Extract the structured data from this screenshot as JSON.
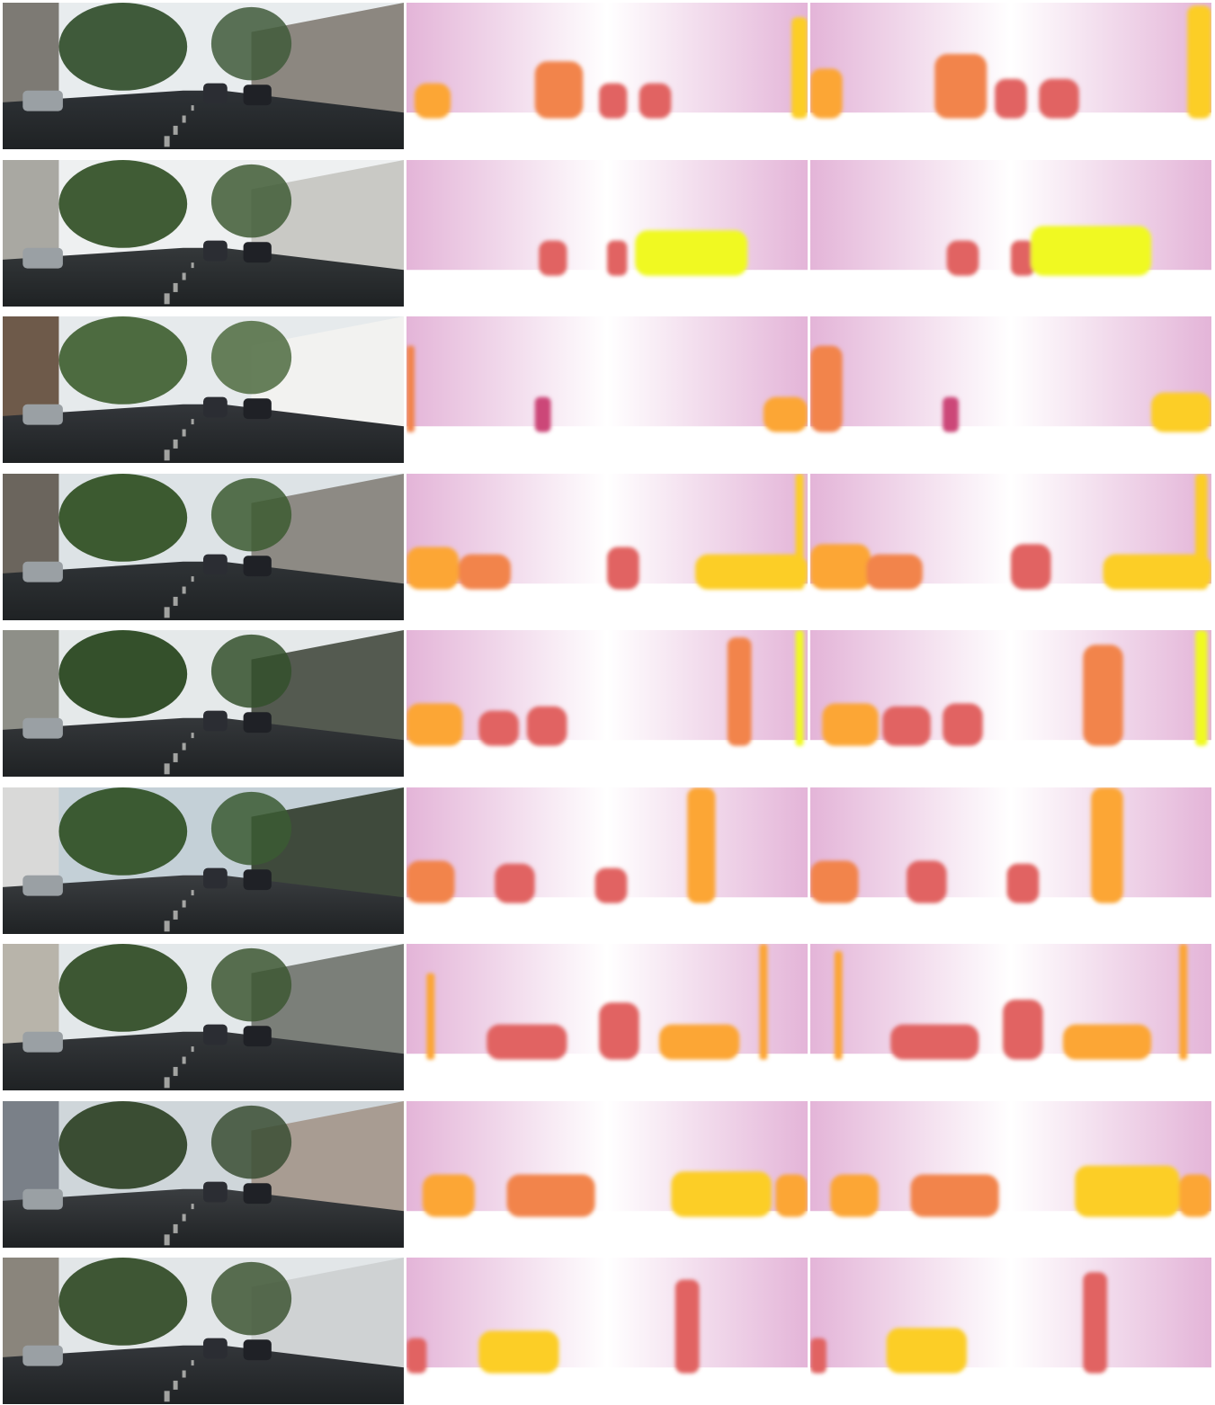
{
  "figure": {
    "column_kinds": [
      "input-rgb",
      "depth-prediction",
      "depth-prediction"
    ],
    "depth_colormap": [
      "#0d0887",
      "#3e049c",
      "#6a00a8",
      "#8f0da4",
      "#b12a90",
      "#cc4778",
      "#e16462",
      "#f2844b",
      "#fca636",
      "#fcce25",
      "#f0f921"
    ],
    "rows": [
      {
        "scene": {
          "sky": "#e8ecee",
          "ground": "#2e3236",
          "foliage": "#3f5a3a",
          "building": "#7d7a74",
          "building_right": "#8c8780"
        },
        "depth_a": {
          "far_colors": [
            "#2a0a96",
            "#5a03a6",
            "#8a14a6"
          ],
          "objects": [
            [
              0.02,
              0.55,
              0.09,
              0.75
            ],
            [
              0.32,
              0.4,
              0.12,
              0.7
            ],
            [
              0.48,
              0.55,
              0.07,
              0.6
            ],
            [
              0.58,
              0.55,
              0.08,
              0.62
            ],
            [
              0.96,
              0.1,
              0.04,
              0.85
            ]
          ]
        },
        "depth_b": {
          "far_colors": [
            "#23078f",
            "#4c05a0",
            "#7e0ca6"
          ],
          "objects": [
            [
              0.0,
              0.45,
              0.08,
              0.78
            ],
            [
              0.31,
              0.35,
              0.13,
              0.7
            ],
            [
              0.46,
              0.52,
              0.08,
              0.6
            ],
            [
              0.57,
              0.52,
              0.1,
              0.62
            ],
            [
              0.94,
              0.02,
              0.06,
              0.92
            ]
          ]
        }
      },
      {
        "scene": {
          "sky": "#eef0f1",
          "ground": "#34383a",
          "foliage": "#405c35",
          "building": "#a9a8a2",
          "building_right": "#c9c9c5"
        },
        "depth_a": {
          "far_colors": [
            "#3c049c",
            "#6300a9",
            "#9a18a0"
          ],
          "objects": [
            [
              0.33,
              0.55,
              0.07,
              0.55
            ],
            [
              0.5,
              0.55,
              0.05,
              0.55
            ],
            [
              0.57,
              0.48,
              0.28,
              0.95
            ]
          ]
        },
        "depth_b": {
          "far_colors": [
            "#3a049b",
            "#6a00a8",
            "#9e1c9c"
          ],
          "objects": [
            [
              0.34,
              0.55,
              0.08,
              0.55
            ],
            [
              0.5,
              0.55,
              0.06,
              0.55
            ],
            [
              0.55,
              0.45,
              0.3,
              0.98
            ]
          ]
        }
      },
      {
        "scene": {
          "sky": "#e6eaec",
          "ground": "#33363a",
          "foliage": "#4d6b40",
          "building": "#6e5a4a",
          "building_right": "#f2f2f0"
        },
        "depth_a": {
          "far_colors": [
            "#4a03a2",
            "#2c0a97",
            "#9a18a0"
          ],
          "objects": [
            [
              0.0,
              0.2,
              0.02,
              0.7
            ],
            [
              0.32,
              0.55,
              0.04,
              0.5
            ],
            [
              0.89,
              0.55,
              0.11,
              0.82
            ]
          ]
        },
        "depth_b": {
          "far_colors": [
            "#3e049c",
            "#220a91",
            "#a82296"
          ],
          "objects": [
            [
              0.0,
              0.2,
              0.08,
              0.72
            ],
            [
              0.33,
              0.55,
              0.04,
              0.5
            ],
            [
              0.85,
              0.52,
              0.15,
              0.86
            ]
          ]
        }
      },
      {
        "scene": {
          "sky": "#dde3e6",
          "ground": "#2f3336",
          "foliage": "#3c5a30",
          "building": "#6b655d",
          "building_right": "#8d8a84"
        },
        "depth_a": {
          "far_colors": [
            "#3a049b",
            "#6a00a8",
            "#a01e9a"
          ],
          "objects": [
            [
              0.0,
              0.5,
              0.13,
              0.82
            ],
            [
              0.13,
              0.55,
              0.13,
              0.65
            ],
            [
              0.5,
              0.5,
              0.08,
              0.62
            ],
            [
              0.72,
              0.55,
              0.28,
              0.9
            ],
            [
              0.97,
              0.0,
              0.02,
              0.92
            ]
          ]
        },
        "depth_b": {
          "far_colors": [
            "#300895",
            "#5a03a6",
            "#a82296"
          ],
          "objects": [
            [
              0.0,
              0.48,
              0.15,
              0.84
            ],
            [
              0.14,
              0.55,
              0.14,
              0.66
            ],
            [
              0.5,
              0.48,
              0.1,
              0.63
            ],
            [
              0.73,
              0.55,
              0.27,
              0.92
            ],
            [
              0.96,
              0.0,
              0.03,
              0.94
            ]
          ]
        }
      },
      {
        "scene": {
          "sky": "#e5e9ea",
          "ground": "#34373a",
          "foliage": "#34502b",
          "building": "#8e8f88",
          "building_right": "#545a50"
        },
        "depth_a": {
          "far_colors": [
            "#2c0a97",
            "#5a03a6",
            "#8a14a6"
          ],
          "objects": [
            [
              0.0,
              0.5,
              0.14,
              0.82
            ],
            [
              0.18,
              0.55,
              0.1,
              0.62
            ],
            [
              0.3,
              0.52,
              0.1,
              0.6
            ],
            [
              0.8,
              0.05,
              0.06,
              0.7
            ],
            [
              0.97,
              0.0,
              0.02,
              0.96
            ]
          ]
        },
        "depth_b": {
          "far_colors": [
            "#280b95",
            "#4c05a0",
            "#8a14a6"
          ],
          "objects": [
            [
              0.03,
              0.5,
              0.14,
              0.82
            ],
            [
              0.18,
              0.52,
              0.12,
              0.64
            ],
            [
              0.33,
              0.5,
              0.1,
              0.62
            ],
            [
              0.68,
              0.1,
              0.1,
              0.72
            ],
            [
              0.96,
              0.0,
              0.03,
              0.98
            ]
          ]
        }
      },
      {
        "scene": {
          "sky": "#c4d0d7",
          "ground": "#3a3d40",
          "foliage": "#3b5a32",
          "building": "#d9d9d8",
          "building_right": "#3f4a3c"
        },
        "depth_a": {
          "far_colors": [
            "#1e0c8d",
            "#4c05a0",
            "#8a14a6"
          ],
          "objects": [
            [
              0.0,
              0.5,
              0.12,
              0.72
            ],
            [
              0.22,
              0.52,
              0.1,
              0.62
            ],
            [
              0.47,
              0.55,
              0.08,
              0.58
            ],
            [
              0.7,
              0.0,
              0.07,
              0.78
            ]
          ]
        },
        "depth_b": {
          "far_colors": [
            "#180c8b",
            "#3e049c",
            "#8a14a6"
          ],
          "objects": [
            [
              0.0,
              0.5,
              0.12,
              0.74
            ],
            [
              0.24,
              0.5,
              0.1,
              0.64
            ],
            [
              0.49,
              0.52,
              0.08,
              0.6
            ],
            [
              0.7,
              0.0,
              0.08,
              0.82
            ]
          ]
        }
      },
      {
        "scene": {
          "sky": "#e3e8ea",
          "ground": "#34373a",
          "foliage": "#3d5733",
          "building": "#b8b4aa",
          "building_right": "#7b7f79"
        },
        "depth_a": {
          "far_colors": [
            "#5a03a6",
            "#3e049c",
            "#8f0da4"
          ],
          "objects": [
            [
              0.05,
              0.2,
              0.02,
              0.75
            ],
            [
              0.2,
              0.55,
              0.2,
              0.62
            ],
            [
              0.48,
              0.4,
              0.1,
              0.62
            ],
            [
              0.63,
              0.55,
              0.2,
              0.78
            ],
            [
              0.88,
              0.0,
              0.02,
              0.78
            ]
          ]
        },
        "depth_b": {
          "far_colors": [
            "#5a03a6",
            "#3a049b",
            "#8f0da4"
          ],
          "objects": [
            [
              0.06,
              0.05,
              0.02,
              0.78
            ],
            [
              0.2,
              0.55,
              0.22,
              0.64
            ],
            [
              0.48,
              0.38,
              0.1,
              0.64
            ],
            [
              0.63,
              0.55,
              0.22,
              0.8
            ],
            [
              0.92,
              0.0,
              0.02,
              0.8
            ]
          ]
        }
      },
      {
        "scene": {
          "sky": "#cfd6da",
          "ground": "#3a3d40",
          "foliage": "#3a4d33",
          "building": "#7a8088",
          "building_right": "#a89c92"
        },
        "depth_a": {
          "far_colors": [
            "#3e049c",
            "#6300a9",
            "#8f0da4"
          ],
          "objects": [
            [
              0.04,
              0.5,
              0.13,
              0.75
            ],
            [
              0.25,
              0.5,
              0.22,
              0.66
            ],
            [
              0.66,
              0.48,
              0.25,
              0.92
            ],
            [
              0.92,
              0.5,
              0.08,
              0.75
            ]
          ]
        },
        "depth_b": {
          "far_colors": [
            "#3e049c",
            "#6300a9",
            "#8f0da4"
          ],
          "objects": [
            [
              0.05,
              0.5,
              0.12,
              0.76
            ],
            [
              0.25,
              0.5,
              0.22,
              0.68
            ],
            [
              0.66,
              0.44,
              0.26,
              0.94
            ],
            [
              0.92,
              0.5,
              0.08,
              0.78
            ]
          ]
        }
      },
      {
        "scene": {
          "sky": "#e2e6e8",
          "ground": "#33363a",
          "foliage": "#3e5634",
          "building": "#8a857c",
          "building_right": "#cfd2d3"
        },
        "depth_a": {
          "far_colors": [
            "#3e049c",
            "#2a0a96",
            "#7e0ca6"
          ],
          "objects": [
            [
              0.0,
              0.55,
              0.05,
              0.62
            ],
            [
              0.18,
              0.5,
              0.2,
              0.86
            ],
            [
              0.67,
              0.15,
              0.06,
              0.55
            ]
          ]
        },
        "depth_b": {
          "far_colors": [
            "#3a049b",
            "#260b93",
            "#7e0ca6"
          ],
          "objects": [
            [
              0.0,
              0.55,
              0.04,
              0.62
            ],
            [
              0.19,
              0.48,
              0.2,
              0.88
            ],
            [
              0.68,
              0.1,
              0.06,
              0.58
            ]
          ]
        }
      }
    ]
  }
}
